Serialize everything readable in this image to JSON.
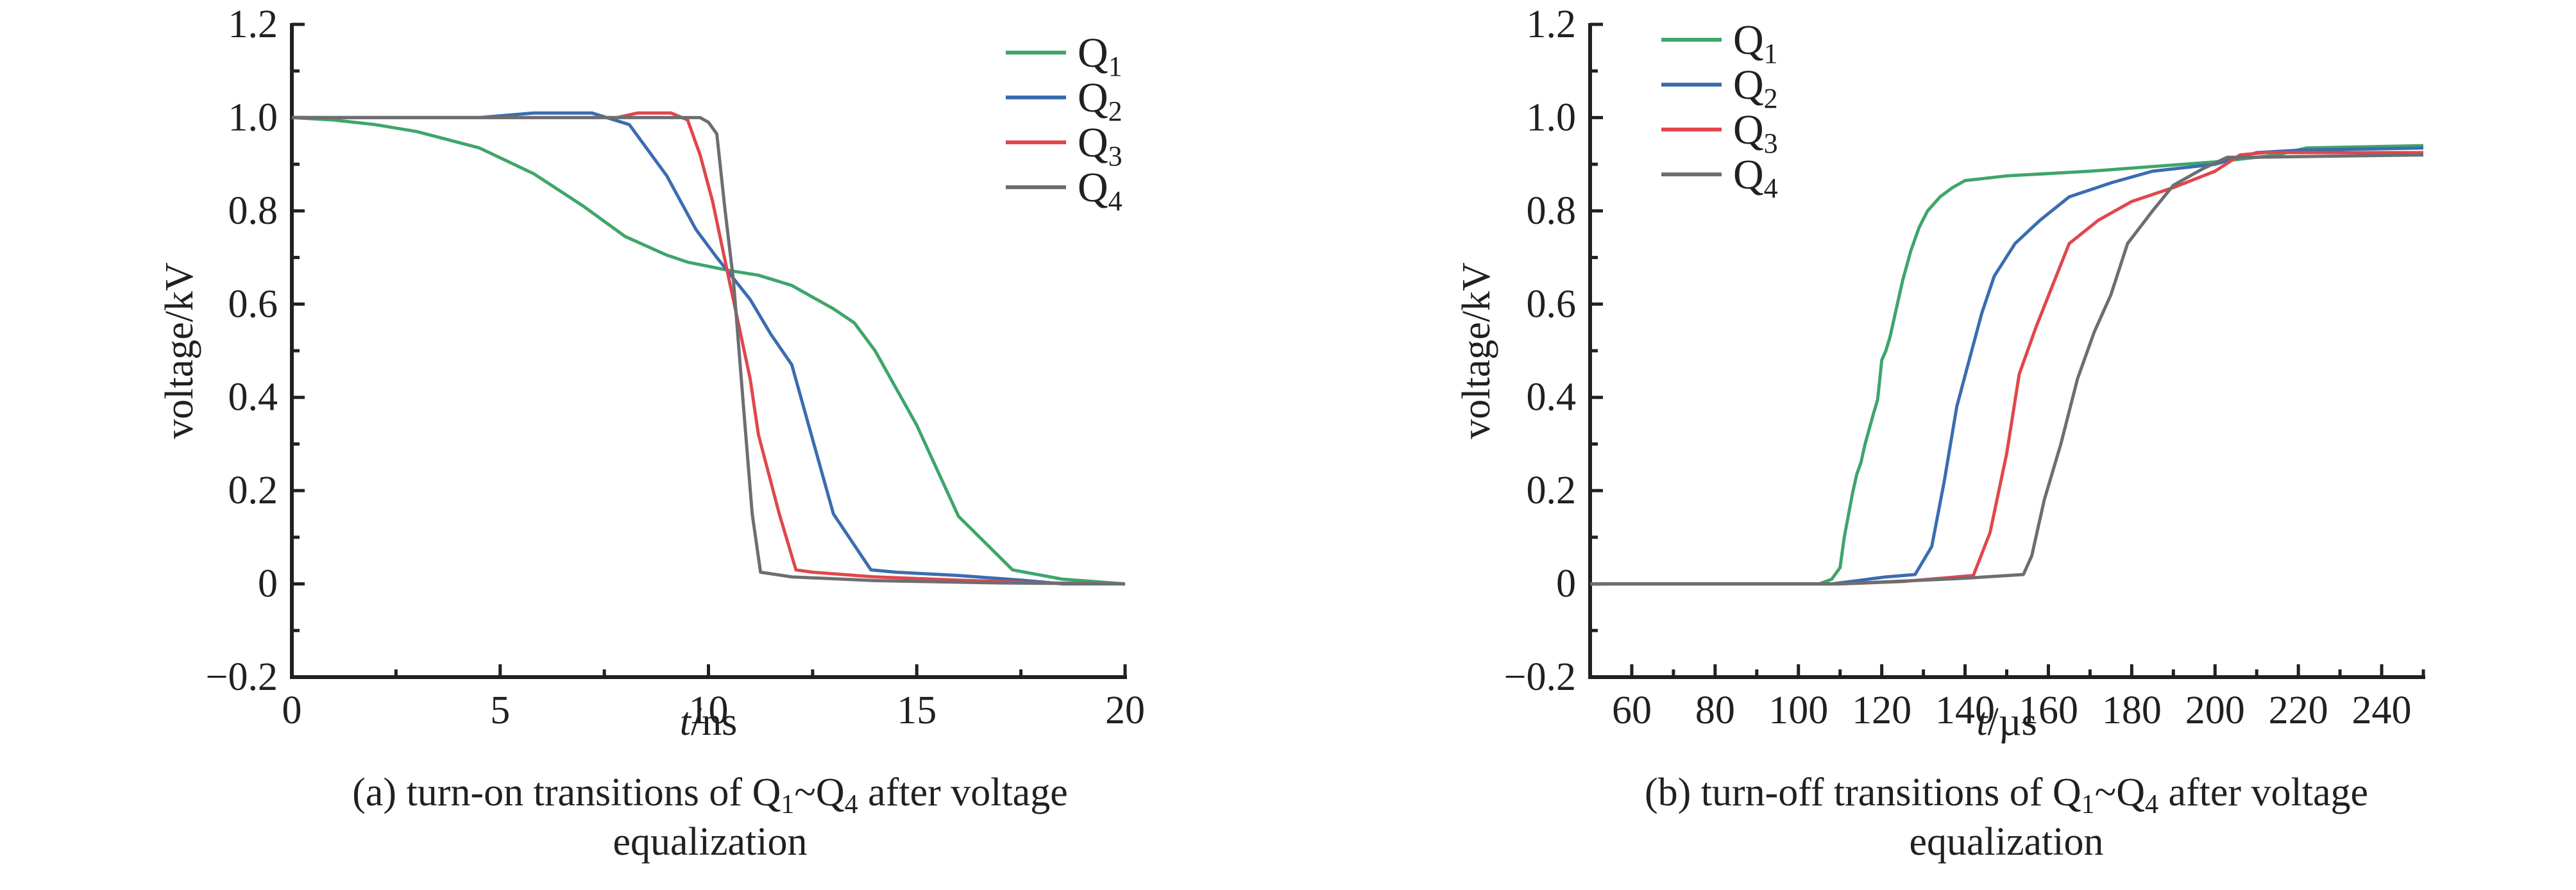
{
  "chart_data": [
    {
      "type": "line",
      "panel": "a",
      "caption_line1_parts": [
        "(a) turn-on transitions of Q",
        "1",
        "~Q",
        "4",
        " after voltage"
      ],
      "caption_line2": "equalization",
      "xlabel_italic": "t",
      "xlabel_unit": "/ns",
      "ylabel": "voltage/kV",
      "xlim": [
        0,
        20
      ],
      "ylim": [
        -0.2,
        1.2
      ],
      "xticks": [
        0,
        5,
        10,
        15,
        20
      ],
      "xtick_labels": [
        "0",
        "5",
        "10",
        "15",
        "20"
      ],
      "x_minor_step": 2.5,
      "yticks": [
        -0.2,
        0,
        0.2,
        0.4,
        0.6,
        0.8,
        1.0,
        1.2
      ],
      "ytick_labels": [
        "−0.2",
        "0",
        "0.2",
        "0.4",
        "0.6",
        "0.8",
        "1.0",
        "1.2"
      ],
      "y_minor_step": 0.1,
      "grid": false,
      "legend_position": "top-right",
      "series": [
        {
          "name": "Q",
          "sub": "1",
          "color": "#3fa56b",
          "x": [
            0,
            1,
            2,
            3,
            4.5,
            5.8,
            7,
            8,
            9,
            9.5,
            10.5,
            11.2,
            12,
            13,
            13.5,
            14,
            14.5,
            15,
            16,
            17.3,
            18.5,
            20
          ],
          "y": [
            1.0,
            0.995,
            0.985,
            0.97,
            0.935,
            0.88,
            0.81,
            0.745,
            0.705,
            0.69,
            0.672,
            0.662,
            0.64,
            0.59,
            0.56,
            0.5,
            0.42,
            0.34,
            0.145,
            0.03,
            0.01,
            0.0
          ]
        },
        {
          "name": "Q",
          "sub": "2",
          "color": "#3a6db0",
          "x": [
            0,
            1.5,
            4.5,
            5.8,
            7.2,
            8.1,
            9,
            9.7,
            10.2,
            10.6,
            11,
            11.5,
            12,
            13,
            13.9,
            14.5,
            16,
            17.5,
            18.5,
            20
          ],
          "y": [
            1.0,
            1.0,
            1.0,
            1.01,
            1.01,
            0.985,
            0.875,
            0.76,
            0.7,
            0.655,
            0.61,
            0.535,
            0.47,
            0.15,
            0.03,
            0.025,
            0.018,
            0.008,
            0.0,
            0.0
          ]
        },
        {
          "name": "Q",
          "sub": "3",
          "color": "#e0474c",
          "x": [
            0,
            7.8,
            8.3,
            9.1,
            9.5,
            9.8,
            10.1,
            10.5,
            11,
            11.2,
            11.7,
            12.1,
            12.5,
            14,
            16,
            18,
            20
          ],
          "y": [
            1.0,
            1.0,
            1.01,
            1.01,
            0.995,
            0.92,
            0.82,
            0.65,
            0.44,
            0.32,
            0.15,
            0.03,
            0.025,
            0.015,
            0.008,
            0.002,
            0.0
          ]
        },
        {
          "name": "Q",
          "sub": "4",
          "color": "#6d6e71",
          "x": [
            0,
            9.8,
            10,
            10.2,
            10.4,
            10.6,
            10.85,
            11.05,
            11.25,
            12,
            14,
            17,
            20
          ],
          "y": [
            1.0,
            1.0,
            0.99,
            0.965,
            0.8,
            0.65,
            0.37,
            0.15,
            0.025,
            0.015,
            0.007,
            0.002,
            0.0
          ]
        }
      ]
    },
    {
      "type": "line",
      "panel": "b",
      "caption_line1_parts": [
        "(b) turn-off transitions of Q",
        "1",
        "~Q",
        "4",
        " after voltage"
      ],
      "caption_line2": "equalization",
      "xlabel_italic": "t",
      "xlabel_unit": "/µs",
      "ylabel": "voltage/kV",
      "xlim": [
        50,
        250
      ],
      "ylim": [
        -0.2,
        1.2
      ],
      "xticks": [
        60,
        80,
        100,
        120,
        140,
        160,
        180,
        200,
        220,
        240
      ],
      "xtick_labels": [
        "60",
        "80",
        "100",
        "120",
        "140",
        "160",
        "180",
        "200",
        "220",
        "240"
      ],
      "x_minor_step": 10,
      "yticks": [
        -0.2,
        0,
        0.2,
        0.4,
        0.6,
        0.8,
        1.0,
        1.2
      ],
      "ytick_labels": [
        "−0.2",
        "0",
        "0.2",
        "0.4",
        "0.6",
        "0.8",
        "1.0",
        "1.2"
      ],
      "y_minor_step": 0.1,
      "grid": false,
      "legend_position": "top-left",
      "series": [
        {
          "name": "Q",
          "sub": "1",
          "color": "#3fa56b",
          "x": [
            50,
            105,
            108,
            110,
            111,
            113,
            114,
            115,
            116,
            118,
            119,
            120,
            121,
            122,
            123,
            125,
            127,
            129,
            131,
            134,
            137,
            140,
            150,
            170,
            185,
            200,
            215,
            222,
            250
          ],
          "y": [
            0,
            0,
            0.01,
            0.035,
            0.1,
            0.195,
            0.235,
            0.26,
            0.3,
            0.365,
            0.395,
            0.48,
            0.5,
            0.53,
            0.57,
            0.65,
            0.715,
            0.765,
            0.8,
            0.83,
            0.85,
            0.865,
            0.875,
            0.885,
            0.895,
            0.905,
            0.92,
            0.935,
            0.94
          ]
        },
        {
          "name": "Q",
          "sub": "2",
          "color": "#3a6db0",
          "x": [
            50,
            108,
            115,
            121,
            128,
            132,
            135,
            138,
            141,
            144,
            147,
            152,
            158,
            165,
            175,
            185,
            200,
            210,
            220,
            250
          ],
          "y": [
            0,
            0,
            0.008,
            0.015,
            0.02,
            0.08,
            0.22,
            0.38,
            0.48,
            0.58,
            0.66,
            0.73,
            0.78,
            0.83,
            0.86,
            0.885,
            0.9,
            0.925,
            0.93,
            0.935
          ]
        },
        {
          "name": "Q",
          "sub": "3",
          "color": "#e0474c",
          "x": [
            50,
            110,
            125,
            142,
            146,
            150,
            153,
            157,
            161,
            165,
            172,
            180,
            190,
            200,
            206,
            212,
            250
          ],
          "y": [
            0,
            0,
            0.005,
            0.018,
            0.11,
            0.28,
            0.45,
            0.55,
            0.64,
            0.73,
            0.78,
            0.82,
            0.85,
            0.885,
            0.92,
            0.925,
            0.925
          ]
        },
        {
          "name": "Q",
          "sub": "4",
          "color": "#6d6e71",
          "x": [
            50,
            110,
            140,
            154,
            156,
            159,
            163,
            167,
            171,
            175,
            179,
            185,
            190,
            197,
            203,
            210,
            250
          ],
          "y": [
            0,
            0,
            0.012,
            0.02,
            0.06,
            0.18,
            0.3,
            0.44,
            0.54,
            0.62,
            0.73,
            0.8,
            0.855,
            0.89,
            0.915,
            0.915,
            0.92
          ]
        }
      ]
    }
  ]
}
